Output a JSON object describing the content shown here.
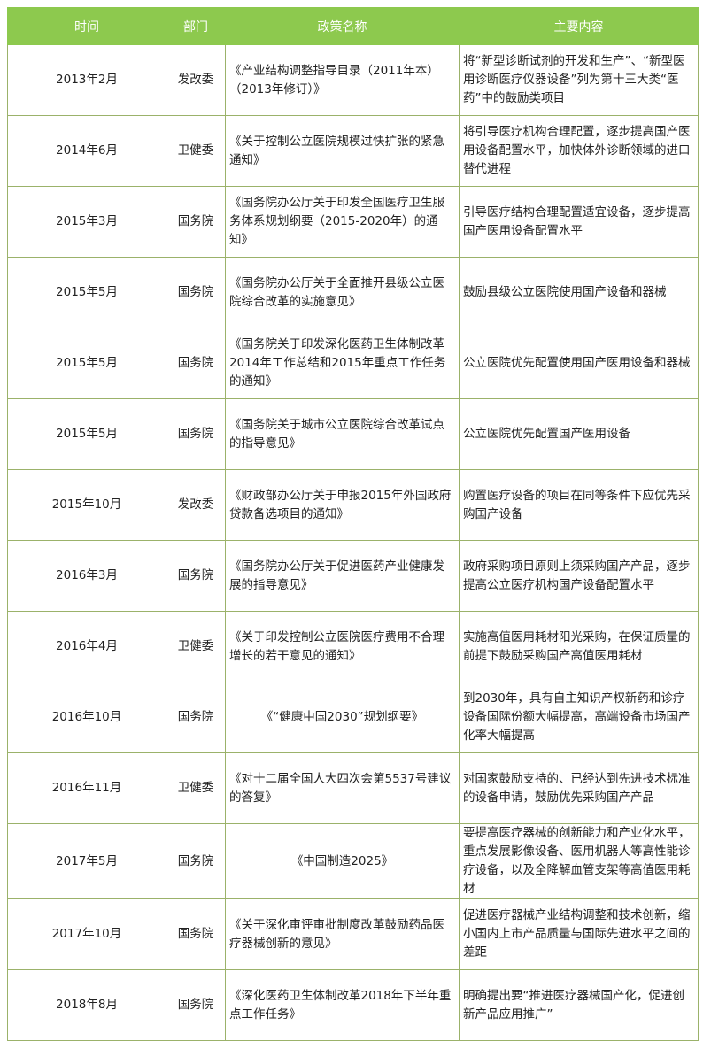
{
  "table": {
    "header_color": "#8dc94e",
    "columns": [
      "时间",
      "部门",
      "政策名称",
      "主要内容"
    ],
    "rows": [
      {
        "time": "2013年2月",
        "dept": "发改委",
        "policy": "《产业结构调整指导目录（2011年本）（2013年修订）》",
        "content": "将“新型诊断试剂的开发和生产”、“新型医用诊断医疗仪器设备”列为第十三大类“医药”中的鼓励类项目"
      },
      {
        "time": "2014年6月",
        "dept": "卫健委",
        "policy": "《关于控制公立医院规模过快扩张的紧急通知》",
        "content": "将引导医疗机构合理配置，逐步提高国产医用设备配置水平，加快体外诊断领域的进口替代进程"
      },
      {
        "time": "2015年3月",
        "dept": "国务院",
        "policy": "《国务院办公厅关于印发全国医疗卫生服务体系规划纲要（2015-2020年）的通知》",
        "content": "引导医疗结构合理配置适宜设备，逐步提高国产医用设备配置水平"
      },
      {
        "time": "2015年5月",
        "dept": "国务院",
        "policy": "《国务院办公厅关于全面推开县级公立医院综合改革的实施意见》",
        "content": "鼓励县级公立医院使用国产设备和器械"
      },
      {
        "time": "2015年5月",
        "dept": "国务院",
        "policy": "《国务院关于印发深化医药卫生体制改革2014年工作总结和2015年重点工作任务的通知》",
        "content": "公立医院优先配置使用国产医用设备和器械"
      },
      {
        "time": "2015年5月",
        "dept": "国务院",
        "policy": "《国务院关于城市公立医院综合改革试点的指导意见》",
        "content": "公立医院优先配置国产医用设备"
      },
      {
        "time": "2015年10月",
        "dept": "发改委",
        "policy": "《财政部办公厅关于申报2015年外国政府贷款备选项目的通知》",
        "content": "购置医疗设备的项目在同等条件下应优先采购国产设备"
      },
      {
        "time": "2016年3月",
        "dept": "国务院",
        "policy": "《国务院办公厅关于促进医药产业健康发展的指导意见》",
        "content": "政府采购项目原则上须采购国产产品，逐步提高公立医疗机构国产设备配置水平"
      },
      {
        "time": "2016年4月",
        "dept": "卫健委",
        "policy": "《关于印发控制公立医院医疗费用不合理增长的若干意见的通知》",
        "content": "实施高值医用耗材阳光采购，在保证质量的前提下鼓励采购国产高值医用耗材"
      },
      {
        "time": "2016年10月",
        "dept": "国务院",
        "policy": "《“健康中国2030”规划纲要》",
        "content": "到2030年，具有自主知识产权新药和诊疗设备国际份额大幅提高，高端设备市场国产化率大幅提高"
      },
      {
        "time": "2016年11月",
        "dept": "卫健委",
        "policy": "《对十二届全国人大四次会第5537号建议的答复》",
        "content": "对国家鼓励支持的、已经达到先进技术标准的设备申请，鼓励优先采购国产产品"
      },
      {
        "time": "2017年5月",
        "dept": "国务院",
        "policy": "《中国制造2025》",
        "content": "要提高医疗器械的创新能力和产业化水平，重点发展影像设备、医用机器人等高性能诊疗设备，以及全降解血管支架等高值医用耗材"
      },
      {
        "time": "2017年10月",
        "dept": "国务院",
        "policy": "《关于深化审评审批制度改革鼓励药品医疗器械创新的意见》",
        "content": "促进医疗器械产业结构调整和技术创新，缩小国内上市产品质量与国际先进水平之间的差距"
      },
      {
        "time": "2018年8月",
        "dept": "国务院",
        "policy": "《深化医药卫生体制改革2018年下半年重点工作任务》",
        "content": "明确提出要“推进医疗器械国产化，促进创新产品应用推广”"
      }
    ]
  }
}
